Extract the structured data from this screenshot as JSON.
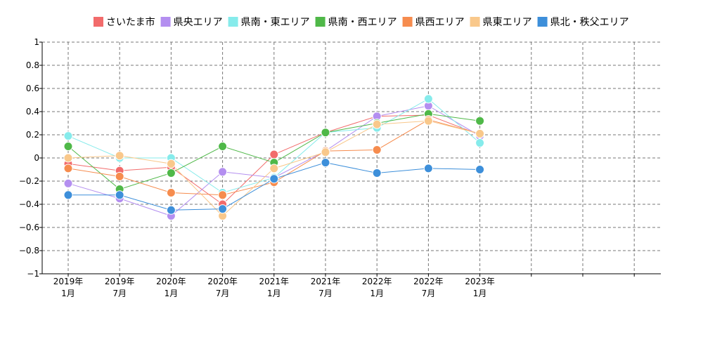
{
  "chart_data": {
    "type": "line",
    "categories": [
      [
        "2019年",
        "1月"
      ],
      [
        "2019年",
        "7月"
      ],
      [
        "2020年",
        "1月"
      ],
      [
        "2020年",
        "7月"
      ],
      [
        "2021年",
        "1月"
      ],
      [
        "2021年",
        "7月"
      ],
      [
        "2022年",
        "1月"
      ],
      [
        "2022年",
        "7月"
      ],
      [
        "2023年",
        "1月"
      ]
    ],
    "x_slots": 12,
    "ylim": [
      -1,
      1
    ],
    "yticks": [
      1,
      0.8,
      0.6,
      0.4,
      0.2,
      0,
      -0.2,
      -0.4,
      -0.6,
      -0.8,
      -1
    ],
    "ytick_labels": [
      "1",
      "0.8",
      "0.6",
      "0.4",
      "0.2",
      "0",
      "−0.2",
      "−0.4",
      "−0.6",
      "−0.8",
      "−1"
    ],
    "grid": true,
    "legend_position": "top",
    "series": [
      {
        "name": "さいたま市",
        "color": "#f26b6b",
        "values": [
          -0.05,
          -0.11,
          -0.08,
          -0.4,
          0.03,
          0.22,
          0.36,
          0.37,
          0.2
        ]
      },
      {
        "name": "県央エリア",
        "color": "#b48ff0",
        "values": [
          -0.22,
          -0.35,
          -0.5,
          -0.12,
          -0.17,
          0.06,
          0.36,
          0.45,
          0.19
        ]
      },
      {
        "name": "県南・東エリア",
        "color": "#86ebeb",
        "values": [
          0.19,
          0.0,
          0.0,
          -0.3,
          -0.17,
          0.22,
          0.26,
          0.51,
          0.13
        ]
      },
      {
        "name": "県南・西エリア",
        "color": "#4fb848",
        "values": [
          0.1,
          -0.27,
          -0.13,
          0.1,
          -0.04,
          0.22,
          0.3,
          0.38,
          0.32
        ]
      },
      {
        "name": "県西エリア",
        "color": "#f68c4e",
        "values": [
          -0.09,
          -0.16,
          -0.3,
          -0.32,
          -0.21,
          0.06,
          0.07,
          0.33,
          0.21
        ]
      },
      {
        "name": "県東エリア",
        "color": "#f9c88b",
        "values": [
          0.0,
          0.02,
          -0.05,
          -0.5,
          -0.09,
          0.05,
          0.29,
          0.32,
          0.21
        ]
      },
      {
        "name": "県北・秩父エリア",
        "color": "#3d8fda",
        "values": [
          -0.32,
          -0.32,
          -0.45,
          -0.44,
          -0.18,
          -0.04,
          -0.13,
          -0.09,
          -0.1
        ]
      }
    ]
  }
}
